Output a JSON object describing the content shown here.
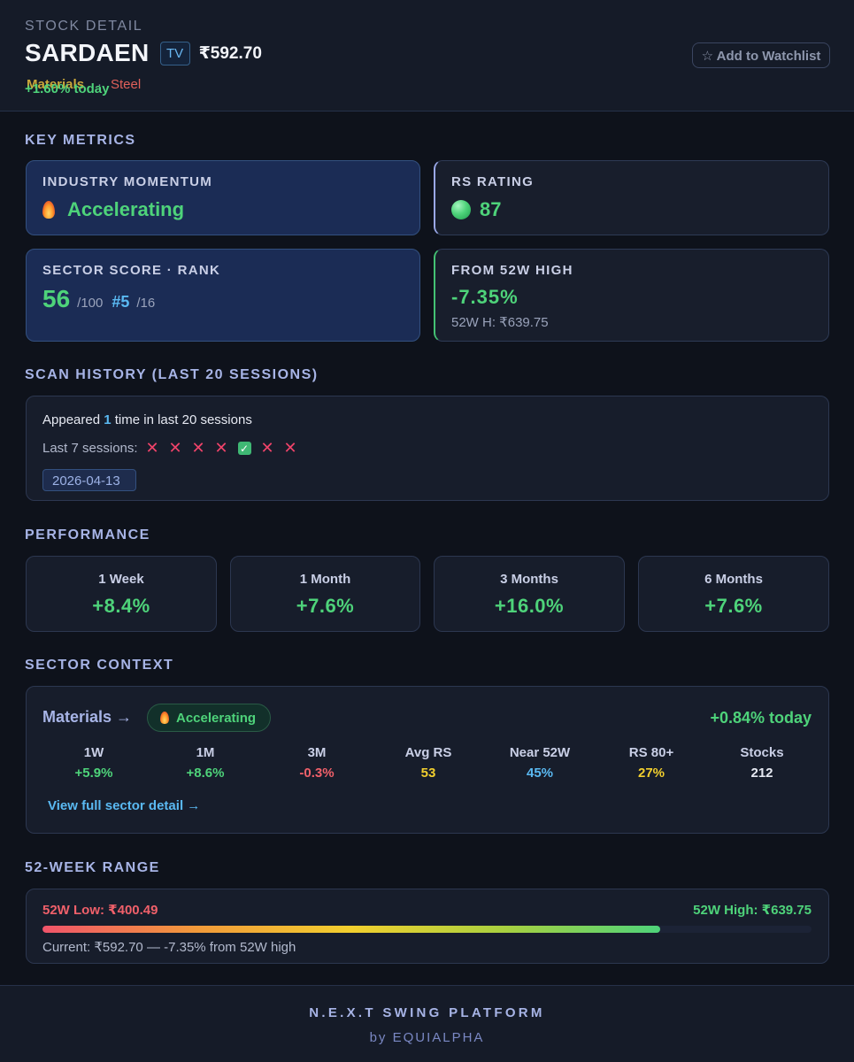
{
  "header": {
    "eyebrow": "STOCK DETAIL",
    "symbol": "SARDAEN",
    "tv_label": "TV",
    "price": "₹592.70",
    "sector_tag": "Materials",
    "separator": "·",
    "industry_tag": "Steel",
    "change_today": "+1.60% today",
    "watchlist_button": "☆ Add to Watchlist"
  },
  "key_metrics": {
    "title": "KEY METRICS",
    "industry_momentum": {
      "label": "INDUSTRY MOMENTUM",
      "icon": "flame-icon",
      "value": "Accelerating"
    },
    "rs_rating": {
      "label": "RS RATING",
      "icon": "green-dot-icon",
      "value": "87"
    },
    "sector_score": {
      "label": "SECTOR SCORE · RANK",
      "score": "56",
      "score_max": "/100",
      "rank": "#5",
      "rank_total": "/16"
    },
    "from_high": {
      "label": "FROM 52W HIGH",
      "value": "-7.35%",
      "sub": "52W H: ₹639.75"
    }
  },
  "scan_history": {
    "title": "SCAN HISTORY (LAST 20 SESSIONS)",
    "appeared_prefix": "Appeared",
    "appeared_count": "1",
    "appeared_suffix": "time in last 20 sessions",
    "last7_label": "Last 7 sessions:",
    "last7": [
      "✕",
      "✕",
      "✕",
      "✕",
      "✓",
      "✕",
      "✕"
    ],
    "dates": [
      "2026-04-13"
    ]
  },
  "performance": {
    "title": "PERFORMANCE",
    "items": [
      {
        "label": "1 Week",
        "value": "+8.4%"
      },
      {
        "label": "1 Month",
        "value": "+7.6%"
      },
      {
        "label": "3 Months",
        "value": "+16.0%"
      },
      {
        "label": "6 Months",
        "value": "+7.6%"
      }
    ]
  },
  "sector_context": {
    "title": "SECTOR CONTEXT",
    "name": "Materials →",
    "badge": "Accelerating",
    "today": "+0.84% today",
    "stats": [
      {
        "label": "1W",
        "value": "+5.9%",
        "color": "#4ed37a"
      },
      {
        "label": "1M",
        "value": "+8.6%",
        "color": "#4ed37a"
      },
      {
        "label": "3M",
        "value": "-0.3%",
        "color": "#f0606a"
      },
      {
        "label": "Avg RS",
        "value": "53",
        "color": "#f2cf2e"
      },
      {
        "label": "Near 52W",
        "value": "45%",
        "color": "#5ab9f2"
      },
      {
        "label": "RS 80+",
        "value": "27%",
        "color": "#f2cf2e"
      },
      {
        "label": "Stocks",
        "value": "212",
        "color": "#e6e9f2"
      }
    ],
    "link": "View full sector detail →"
  },
  "range_52w": {
    "title": "52-WEEK RANGE",
    "low": "52W Low: ₹400.49",
    "high": "52W High: ₹639.75",
    "position_fraction": 0.803,
    "current": "Current: ₹592.70 — -7.35% from 52W high"
  },
  "footer": {
    "title": "N.E.X.T SWING PLATFORM",
    "sub": "by EQUIALPHA"
  }
}
